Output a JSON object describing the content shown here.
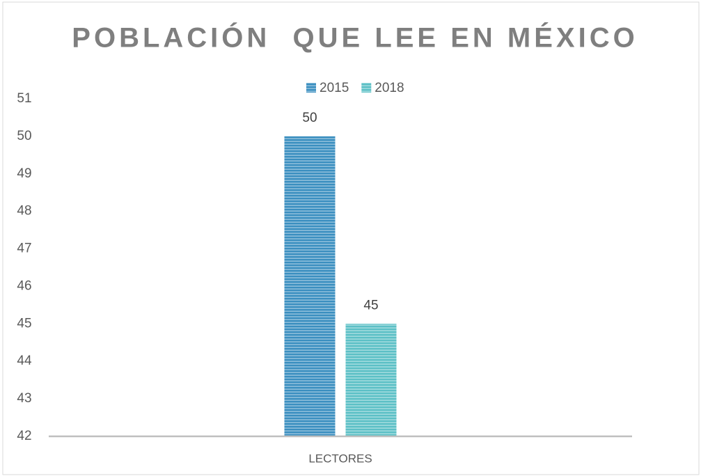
{
  "chart_data": {
    "type": "bar",
    "title": "POBLACIÓN  QUE LEE EN MÉXICO",
    "categories": [
      "LECTORES"
    ],
    "series": [
      {
        "name": "2015",
        "color": "#3b8fc0",
        "values": [
          50
        ]
      },
      {
        "name": "2018",
        "color": "#5cc0c6",
        "values": [
          45
        ]
      }
    ],
    "ylim": [
      42,
      51
    ],
    "yticks": [
      42,
      43,
      44,
      45,
      46,
      47,
      48,
      49,
      50,
      51
    ],
    "grid": false,
    "legend": "top"
  }
}
